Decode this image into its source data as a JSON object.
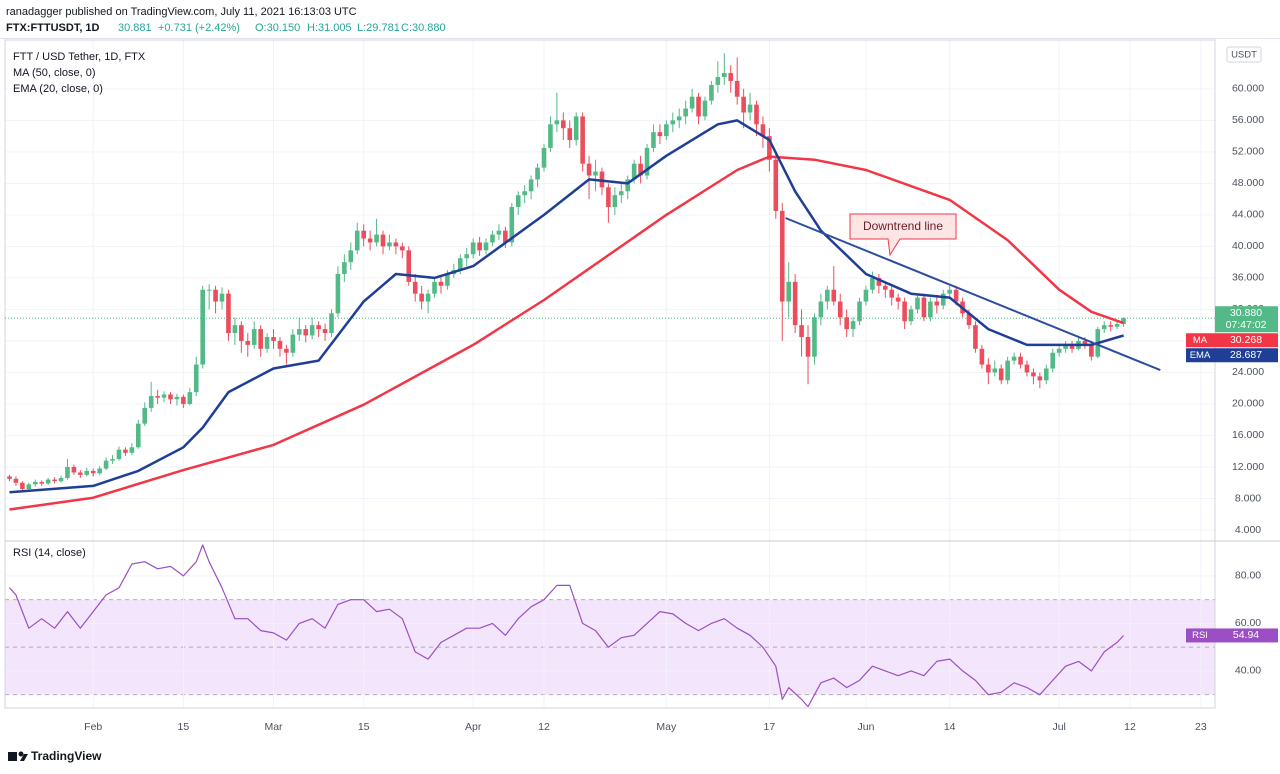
{
  "header": {
    "publisher": "ranadagger published on TradingView.com, July 11, 2021 16:13:03 UTC",
    "symbol": "FTX:FTTUSDT, 1D",
    "last": "30.881",
    "change": "+0.731 (+2.42%)",
    "ohlc": [
      "O:30.150",
      "H:31.005",
      "L:29.781",
      "C:30.880"
    ]
  },
  "footer": {
    "brand": "TradingView"
  },
  "chart_data": {
    "type": "candlestick",
    "title": "FTT / USD Tether, 1D, FTX",
    "currency": "USDT",
    "up_color": "#53b987",
    "down_color": "#eb4d5c",
    "grid": true,
    "xlim": [
      -0.7,
      187.2
    ],
    "xticks": [
      {
        "value": 13,
        "label": "Feb"
      },
      {
        "value": 27,
        "label": "15"
      },
      {
        "value": 41,
        "label": "Mar"
      },
      {
        "value": 55,
        "label": "15"
      },
      {
        "value": 72,
        "label": "Apr"
      },
      {
        "value": 83,
        "label": "12"
      },
      {
        "value": 102,
        "label": "May"
      },
      {
        "value": 118,
        "label": "17"
      },
      {
        "value": 133,
        "label": "Jun"
      },
      {
        "value": 146,
        "label": "14"
      },
      {
        "value": 163,
        "label": "Jul"
      },
      {
        "value": 174,
        "label": "12"
      },
      {
        "value": 185,
        "label": "23"
      }
    ],
    "ylim": [
      2.73,
      66.2
    ],
    "yticks": [
      {
        "value": 4,
        "label": "4.000"
      },
      {
        "value": 8,
        "label": "8.000"
      },
      {
        "value": 12,
        "label": "12.000"
      },
      {
        "value": 16,
        "label": "16.000"
      },
      {
        "value": 20,
        "label": "20.000"
      },
      {
        "value": 24,
        "label": "24.000"
      },
      {
        "value": 28,
        "label": "28.000"
      },
      {
        "value": 32,
        "label": "32.000"
      },
      {
        "value": 36,
        "label": "36.000"
      },
      {
        "value": 40,
        "label": "40.000"
      },
      {
        "value": 44,
        "label": "44.000"
      },
      {
        "value": 48,
        "label": "48.000"
      },
      {
        "value": 52,
        "label": "52.000"
      },
      {
        "value": 56,
        "label": "56.000"
      },
      {
        "value": 60,
        "label": "60.000"
      }
    ],
    "candles": [
      [
        10.8,
        11.0,
        10.2,
        10.5
      ],
      [
        10.5,
        10.8,
        9.6,
        10.0
      ],
      [
        10.0,
        10.2,
        8.9,
        9.2
      ],
      [
        9.2,
        10.0,
        9.0,
        9.8
      ],
      [
        9.8,
        10.4,
        9.5,
        10.1
      ],
      [
        10.1,
        10.3,
        9.6,
        9.9
      ],
      [
        9.9,
        10.6,
        9.7,
        10.4
      ],
      [
        10.4,
        10.7,
        9.9,
        10.2
      ],
      [
        10.2,
        10.9,
        10.0,
        10.6
      ],
      [
        10.6,
        13.0,
        10.4,
        12.0
      ],
      [
        12.0,
        12.3,
        11.0,
        11.3
      ],
      [
        11.3,
        11.6,
        10.6,
        11.0
      ],
      [
        11.0,
        11.9,
        10.8,
        11.5
      ],
      [
        11.5,
        11.8,
        10.8,
        11.2
      ],
      [
        11.2,
        12.1,
        11.0,
        11.8
      ],
      [
        11.8,
        13.2,
        11.6,
        12.8
      ],
      [
        12.8,
        13.5,
        12.4,
        13.0
      ],
      [
        13.0,
        14.6,
        12.8,
        14.2
      ],
      [
        14.2,
        14.5,
        13.4,
        13.8
      ],
      [
        13.8,
        15.0,
        13.5,
        14.5
      ],
      [
        14.5,
        18.0,
        14.3,
        17.5
      ],
      [
        17.5,
        20.2,
        17.2,
        19.5
      ],
      [
        19.5,
        22.8,
        19.0,
        21.0
      ],
      [
        21.0,
        21.8,
        20.0,
        20.8
      ],
      [
        20.8,
        21.6,
        20.2,
        21.2
      ],
      [
        21.2,
        21.5,
        20.0,
        20.6
      ],
      [
        20.6,
        21.3,
        19.8,
        20.9
      ],
      [
        20.9,
        21.2,
        19.5,
        20.0
      ],
      [
        20.0,
        22.0,
        19.8,
        21.5
      ],
      [
        21.5,
        26.0,
        21.0,
        25.0
      ],
      [
        25.0,
        35.0,
        24.5,
        34.5
      ],
      [
        34.5,
        35.2,
        32.0,
        34.5
      ],
      [
        34.5,
        35.0,
        31.5,
        33.0
      ],
      [
        33.0,
        34.8,
        32.0,
        34.0
      ],
      [
        34.0,
        34.5,
        28.0,
        29.0
      ],
      [
        29.0,
        31.0,
        27.5,
        30.0
      ],
      [
        30.0,
        30.5,
        26.5,
        28.0
      ],
      [
        28.0,
        29.0,
        26.0,
        27.5
      ],
      [
        27.5,
        30.5,
        27.0,
        29.5
      ],
      [
        29.5,
        30.0,
        26.0,
        27.0
      ],
      [
        27.0,
        29.0,
        26.5,
        28.5
      ],
      [
        28.5,
        29.5,
        27.0,
        28.0
      ],
      [
        28.0,
        28.5,
        26.0,
        27.0
      ],
      [
        27.0,
        27.5,
        25.0,
        26.5
      ],
      [
        26.5,
        29.5,
        26.0,
        28.8
      ],
      [
        28.8,
        31.0,
        28.0,
        29.5
      ],
      [
        29.5,
        30.0,
        27.8,
        28.7
      ],
      [
        28.7,
        31.0,
        28.2,
        30.0
      ],
      [
        30.0,
        30.5,
        28.5,
        29.5
      ],
      [
        29.5,
        30.2,
        28.0,
        29.0
      ],
      [
        29.0,
        32.0,
        28.5,
        31.5
      ],
      [
        31.5,
        37.5,
        31.0,
        36.5
      ],
      [
        36.5,
        39.0,
        35.5,
        38.0
      ],
      [
        38.0,
        40.5,
        37.0,
        39.5
      ],
      [
        39.5,
        43.0,
        39.0,
        42.0
      ],
      [
        42.0,
        42.8,
        40.0,
        41.0
      ],
      [
        41.0,
        42.0,
        39.5,
        40.5
      ],
      [
        40.5,
        43.5,
        40.0,
        41.5
      ],
      [
        41.5,
        42.0,
        39.0,
        40.0
      ],
      [
        40.0,
        41.5,
        39.5,
        40.5
      ],
      [
        40.5,
        41.0,
        39.0,
        40.0
      ],
      [
        40.0,
        40.5,
        38.5,
        39.5
      ],
      [
        39.5,
        40.0,
        35.0,
        35.5
      ],
      [
        35.5,
        36.5,
        33.0,
        34.0
      ],
      [
        34.0,
        35.0,
        32.0,
        33.0
      ],
      [
        33.0,
        34.5,
        31.5,
        34.0
      ],
      [
        34.0,
        36.0,
        33.5,
        35.5
      ],
      [
        35.5,
        36.2,
        34.0,
        35.0
      ],
      [
        35.0,
        37.0,
        34.5,
        36.5
      ],
      [
        36.5,
        37.8,
        36.0,
        37.0
      ],
      [
        37.0,
        39.0,
        36.5,
        38.5
      ],
      [
        38.5,
        39.8,
        37.5,
        39.0
      ],
      [
        39.0,
        41.0,
        38.5,
        40.5
      ],
      [
        40.5,
        41.2,
        38.8,
        39.5
      ],
      [
        39.5,
        41.0,
        39.0,
        40.5
      ],
      [
        40.5,
        42.0,
        40.0,
        41.5
      ],
      [
        41.5,
        42.8,
        40.8,
        42.0
      ],
      [
        42.0,
        42.5,
        39.8,
        40.5
      ],
      [
        40.5,
        45.5,
        40.0,
        45.0
      ],
      [
        45.0,
        47.0,
        44.0,
        46.5
      ],
      [
        46.5,
        47.8,
        45.5,
        47.0
      ],
      [
        47.0,
        49.0,
        46.0,
        48.5
      ],
      [
        48.5,
        50.5,
        47.5,
        50.0
      ],
      [
        50.0,
        53.0,
        49.5,
        52.5
      ],
      [
        52.5,
        56.5,
        52.0,
        55.5
      ],
      [
        55.5,
        59.5,
        54.5,
        56.0
      ],
      [
        56.0,
        57.0,
        53.5,
        55.0
      ],
      [
        55.0,
        56.0,
        52.5,
        53.5
      ],
      [
        53.5,
        57.0,
        52.8,
        56.5
      ],
      [
        56.5,
        57.0,
        49.5,
        50.5
      ],
      [
        50.5,
        51.5,
        46.0,
        49.0
      ],
      [
        49.0,
        51.0,
        47.0,
        49.5
      ],
      [
        49.5,
        50.0,
        46.5,
        47.5
      ],
      [
        47.5,
        48.0,
        43.0,
        45.0
      ],
      [
        45.0,
        47.5,
        44.0,
        46.5
      ],
      [
        46.5,
        48.0,
        45.5,
        47.0
      ],
      [
        47.0,
        49.0,
        46.0,
        48.5
      ],
      [
        48.5,
        51.0,
        48.0,
        50.5
      ],
      [
        50.5,
        51.5,
        48.0,
        49.0
      ],
      [
        49.0,
        53.0,
        48.5,
        52.5
      ],
      [
        52.5,
        55.5,
        52.0,
        54.5
      ],
      [
        54.5,
        55.5,
        53.0,
        54.0
      ],
      [
        54.0,
        56.0,
        53.5,
        55.5
      ],
      [
        55.5,
        57.0,
        54.5,
        56.0
      ],
      [
        56.0,
        57.5,
        55.0,
        56.5
      ],
      [
        56.5,
        58.5,
        55.5,
        57.5
      ],
      [
        57.5,
        60.0,
        57.0,
        59.0
      ],
      [
        59.0,
        59.5,
        55.5,
        56.5
      ],
      [
        56.5,
        59.0,
        56.0,
        58.5
      ],
      [
        58.5,
        61.0,
        58.0,
        60.5
      ],
      [
        60.5,
        63.5,
        59.5,
        61.5
      ],
      [
        61.5,
        64.5,
        60.5,
        62.0
      ],
      [
        62.0,
        63.0,
        59.5,
        61.0
      ],
      [
        61.0,
        64.0,
        58.0,
        59.0
      ],
      [
        59.0,
        60.0,
        55.0,
        57.0
      ],
      [
        57.0,
        59.5,
        56.0,
        58.0
      ],
      [
        58.0,
        58.5,
        54.0,
        55.5
      ],
      [
        55.5,
        56.5,
        52.5,
        54.0
      ],
      [
        54.0,
        55.0,
        49.5,
        51.0
      ],
      [
        51.0,
        52.0,
        43.5,
        44.5
      ],
      [
        44.5,
        45.5,
        28.0,
        33.0
      ],
      [
        33.0,
        38.0,
        31.0,
        35.5
      ],
      [
        35.5,
        36.5,
        29.0,
        30.0
      ],
      [
        30.0,
        32.0,
        26.0,
        28.5
      ],
      [
        28.5,
        30.0,
        22.5,
        26.0
      ],
      [
        26.0,
        31.5,
        25.0,
        31.0
      ],
      [
        31.0,
        34.0,
        30.0,
        33.0
      ],
      [
        33.0,
        35.0,
        32.0,
        34.5
      ],
      [
        34.5,
        37.5,
        32.5,
        33.0
      ],
      [
        33.0,
        34.0,
        30.0,
        31.0
      ],
      [
        31.0,
        32.0,
        28.5,
        29.5
      ],
      [
        29.5,
        31.0,
        28.5,
        30.5
      ],
      [
        30.5,
        33.5,
        30.0,
        33.0
      ],
      [
        33.0,
        35.0,
        32.5,
        34.5
      ],
      [
        34.5,
        36.8,
        34.0,
        36.0
      ],
      [
        36.0,
        36.5,
        34.0,
        35.0
      ],
      [
        35.0,
        35.5,
        33.5,
        34.5
      ],
      [
        34.5,
        35.0,
        32.5,
        33.5
      ],
      [
        33.5,
        34.0,
        32.0,
        33.0
      ],
      [
        33.0,
        33.5,
        29.5,
        30.5
      ],
      [
        30.5,
        32.5,
        30.0,
        32.0
      ],
      [
        32.0,
        34.0,
        31.5,
        33.5
      ],
      [
        33.5,
        34.0,
        30.5,
        31.0
      ],
      [
        31.0,
        33.5,
        30.5,
        33.0
      ],
      [
        33.0,
        33.8,
        31.5,
        32.5
      ],
      [
        32.5,
        34.5,
        32.0,
        34.0
      ],
      [
        34.0,
        35.0,
        33.5,
        34.5
      ],
      [
        34.5,
        35.0,
        32.5,
        33.0
      ],
      [
        33.0,
        33.5,
        31.0,
        31.5
      ],
      [
        31.5,
        32.0,
        29.5,
        30.0
      ],
      [
        30.0,
        30.5,
        26.5,
        27.0
      ],
      [
        27.0,
        27.5,
        24.5,
        25.0
      ],
      [
        25.0,
        25.8,
        22.5,
        24.0
      ],
      [
        24.0,
        25.5,
        23.5,
        24.5
      ],
      [
        24.5,
        25.0,
        22.5,
        23.0
      ],
      [
        23.0,
        26.0,
        22.5,
        25.5
      ],
      [
        25.5,
        26.5,
        25.0,
        26.0
      ],
      [
        26.0,
        26.5,
        24.5,
        25.0
      ],
      [
        25.0,
        25.5,
        23.5,
        24.0
      ],
      [
        24.0,
        24.5,
        22.5,
        23.5
      ],
      [
        23.5,
        24.0,
        22.0,
        23.0
      ],
      [
        23.0,
        25.0,
        22.5,
        24.5
      ],
      [
        24.5,
        27.0,
        24.0,
        26.5
      ],
      [
        26.5,
        27.5,
        26.0,
        27.0
      ],
      [
        27.0,
        28.0,
        26.5,
        27.5
      ],
      [
        27.5,
        28.0,
        26.5,
        27.0
      ],
      [
        27.0,
        28.5,
        26.8,
        28.0
      ],
      [
        28.0,
        28.5,
        27.0,
        27.5
      ],
      [
        27.5,
        28.0,
        25.5,
        26.0
      ],
      [
        26.0,
        29.8,
        25.8,
        29.5
      ],
      [
        29.5,
        30.5,
        29.0,
        30.0
      ],
      [
        30.0,
        30.5,
        29.2,
        29.8
      ],
      [
        29.8,
        30.6,
        29.5,
        30.15
      ],
      [
        30.15,
        31.005,
        29.781,
        30.88
      ]
    ],
    "last_price_tag": {
      "label": "30.880",
      "countdown": "07:47:02",
      "color": "#53b987"
    },
    "overlays": [
      {
        "name": "MA (50, close, 0)",
        "tag": "MA",
        "tag_value": "30.268",
        "color": "#f23645",
        "x": [
          0,
          13,
          27,
          41,
          55,
          72,
          83,
          102,
          113,
          118,
          125,
          133,
          146,
          155,
          163,
          168,
          173
        ],
        "values": [
          6.6,
          8.1,
          11.6,
          14.8,
          19.9,
          27.5,
          33.2,
          44,
          49.7,
          51.4,
          51,
          49.7,
          45.9,
          40.8,
          34.5,
          31.7,
          30.268
        ]
      },
      {
        "name": "EMA (20, close, 0)",
        "tag": "EMA",
        "tag_value": "28.687",
        "color": "#1f3e96",
        "x": [
          0,
          13,
          20,
          27,
          30,
          34,
          41,
          48,
          55,
          60,
          66,
          72,
          83,
          90,
          96,
          102,
          110,
          113,
          118,
          122,
          126,
          133,
          140,
          146,
          152,
          158,
          163,
          168,
          173
        ],
        "values": [
          8.8,
          9.6,
          11.5,
          14.5,
          17,
          21.5,
          24.5,
          25.5,
          33,
          36.5,
          36,
          37.5,
          44,
          48.5,
          48,
          51.5,
          55.5,
          56,
          53.5,
          47,
          42,
          36.5,
          34,
          33.5,
          29.5,
          27.5,
          27.5,
          27.5,
          28.687
        ]
      }
    ],
    "trendline": {
      "label": "Downtrend line",
      "color": "#2f4d9e",
      "x": [
        120.5,
        178.7
      ],
      "y": [
        43.6,
        24.3
      ]
    },
    "rsi": {
      "name": "RSI (14, close)",
      "tag": "RSI",
      "tag_value": "54.94",
      "color": "#9c4fc4",
      "band_color": "#f3e5fb",
      "band": [
        30,
        70
      ],
      "levels": [
        30,
        50,
        70
      ],
      "ylim": [
        24.4,
        94.7
      ],
      "yticks": [
        {
          "value": 40,
          "label": "40.00"
        },
        {
          "value": 60,
          "label": "60.00"
        },
        {
          "value": 80,
          "label": "80.00"
        }
      ],
      "x": [
        0,
        1,
        3,
        5,
        7,
        9,
        11,
        13,
        15,
        17,
        19,
        21,
        23,
        25,
        27,
        29,
        30,
        31,
        33,
        35,
        37,
        39,
        41,
        43,
        45,
        47,
        49,
        51,
        53,
        55,
        57,
        59,
        61,
        63,
        65,
        67,
        69,
        71,
        73,
        75,
        77,
        79,
        81,
        83,
        85,
        87,
        89,
        91,
        93,
        95,
        97,
        99,
        101,
        103,
        105,
        107,
        109,
        111,
        113,
        115,
        117,
        119,
        120,
        121,
        123,
        124,
        126,
        128,
        130,
        132,
        134,
        136,
        138,
        140,
        142,
        144,
        146,
        148,
        150,
        152,
        154,
        156,
        158,
        160,
        162,
        164,
        166,
        168,
        170,
        172,
        173
      ],
      "values": [
        75,
        72,
        58,
        62,
        58,
        65,
        58,
        65,
        72,
        75,
        85,
        86,
        83,
        84,
        80,
        86,
        93,
        86,
        75,
        62,
        62,
        57,
        56,
        53,
        60,
        62,
        58,
        68,
        70,
        70,
        65,
        66,
        62,
        48,
        45,
        52,
        55,
        58,
        58,
        60,
        55,
        62,
        67,
        70,
        76,
        76,
        60,
        57,
        50,
        54,
        55,
        60,
        65,
        64,
        60,
        57,
        60,
        62,
        58,
        55,
        50,
        42,
        28,
        33,
        28,
        25,
        35,
        37,
        33,
        36,
        42,
        40,
        38,
        40,
        38,
        44,
        45,
        40,
        36,
        30,
        31,
        35,
        33,
        30,
        36,
        42,
        44,
        40,
        48,
        52,
        54.94
      ]
    }
  }
}
